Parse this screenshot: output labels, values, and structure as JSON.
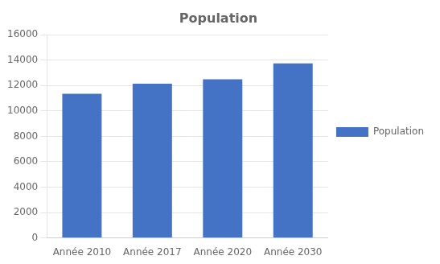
{
  "chart_data": {
    "type": "bar",
    "title": "Population",
    "categories": [
      "Année 2010",
      "Année 2017",
      "Année 2020",
      "Année 2030"
    ],
    "series": [
      {
        "name": "Population",
        "color": "#4472C4",
        "values": [
          11350,
          12150,
          12500,
          13750
        ]
      }
    ],
    "ylim": [
      0,
      16000
    ],
    "yticks": [
      0,
      2000,
      4000,
      6000,
      8000,
      10000,
      12000,
      14000,
      16000
    ],
    "grid": true,
    "legend": "right"
  }
}
